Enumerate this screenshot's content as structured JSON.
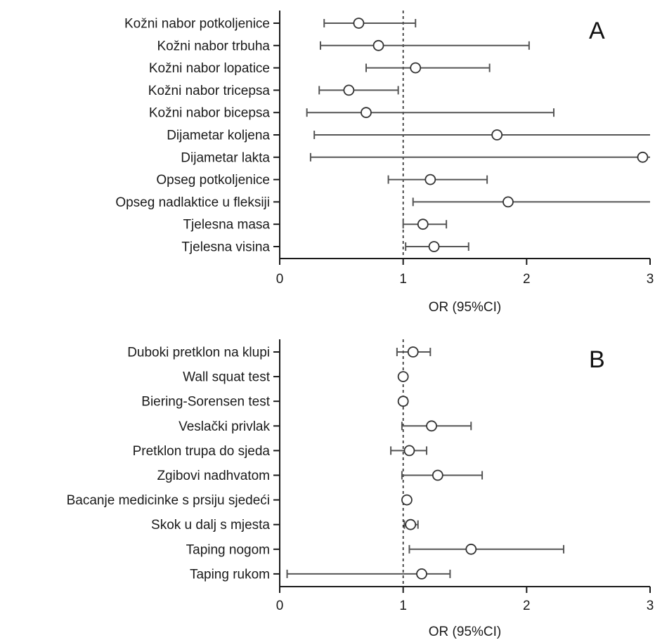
{
  "chart_data": [
    {
      "type": "forest",
      "panel_label": "A",
      "xlabel": "OR (95%CI)",
      "xlim": [
        0,
        3
      ],
      "xticks": [
        0,
        1,
        2,
        3
      ],
      "reference_value": 1,
      "rows": [
        {
          "label": "Kožni nabor potkoljenice",
          "or": 0.64,
          "lower": 0.36,
          "upper": 1.1
        },
        {
          "label": "Kožni nabor trbuha",
          "or": 0.8,
          "lower": 0.33,
          "upper": 2.02
        },
        {
          "label": "Kožni nabor lopatice",
          "or": 1.1,
          "lower": 0.7,
          "upper": 1.7
        },
        {
          "label": "Kožni nabor tricepsa",
          "or": 0.56,
          "lower": 0.32,
          "upper": 0.96
        },
        {
          "label": "Kožni nabor bicepsa",
          "or": 0.7,
          "lower": 0.22,
          "upper": 2.22
        },
        {
          "label": "Dijametar koljena",
          "or": 1.76,
          "lower": 0.28,
          "upper": 3.0
        },
        {
          "label": "Dijametar lakta",
          "or": 2.94,
          "lower": 0.25,
          "upper": 3.0
        },
        {
          "label": "Opseg potkoljenice",
          "or": 1.22,
          "lower": 0.88,
          "upper": 1.68
        },
        {
          "label": "Opseg nadlaktice u fleksiji",
          "or": 1.85,
          "lower": 1.08,
          "upper": 3.0
        },
        {
          "label": "Tjelesna masa",
          "or": 1.16,
          "lower": 1.0,
          "upper": 1.35
        },
        {
          "label": "Tjelesna visina",
          "or": 1.25,
          "lower": 1.02,
          "upper": 1.53
        }
      ]
    },
    {
      "type": "forest",
      "panel_label": "B",
      "xlabel": "OR (95%CI)",
      "xlim": [
        0,
        3
      ],
      "xticks": [
        0,
        1,
        2,
        3
      ],
      "reference_value": 1,
      "rows": [
        {
          "label": "Duboki pretklon na klupi",
          "or": 1.08,
          "lower": 0.95,
          "upper": 1.22
        },
        {
          "label": "Wall squat test",
          "or": 1.0,
          "lower": 0.98,
          "upper": 1.02
        },
        {
          "label": "Biering-Sorensen test",
          "or": 1.0,
          "lower": 0.98,
          "upper": 1.03
        },
        {
          "label": "Veslački privlak",
          "or": 1.23,
          "lower": 0.99,
          "upper": 1.55
        },
        {
          "label": "Pretklon trupa do sjeda",
          "or": 1.05,
          "lower": 0.9,
          "upper": 1.19
        },
        {
          "label": "Zgibovi nadhvatom",
          "or": 1.28,
          "lower": 0.99,
          "upper": 1.64
        },
        {
          "label": "Bacanje medicinke s prsiju sjedeći",
          "or": 1.03,
          "lower": 1.01,
          "upper": 1.05
        },
        {
          "label": "Skok u dalj s mjesta",
          "or": 1.06,
          "lower": 1.01,
          "upper": 1.12
        },
        {
          "label": "Taping nogom",
          "or": 1.55,
          "lower": 1.05,
          "upper": 2.3
        },
        {
          "label": "Taping rukom",
          "or": 1.15,
          "lower": 0.06,
          "upper": 1.38
        }
      ]
    }
  ]
}
